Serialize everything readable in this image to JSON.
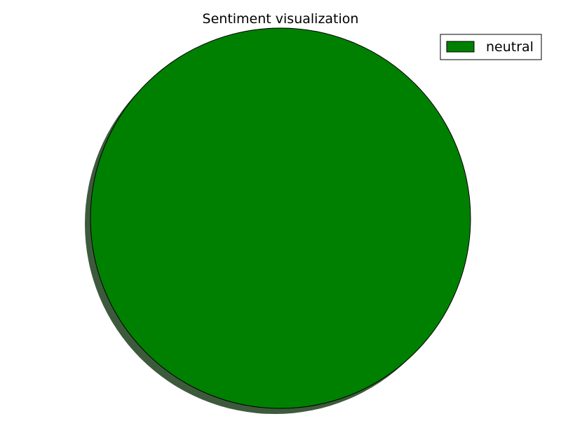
{
  "chart_data": {
    "type": "pie",
    "title": "Sentiment visualization",
    "slices": [
      {
        "label": "neutral",
        "value": 100,
        "color": "#008000"
      }
    ],
    "shadow": true,
    "shadow_color": "#3d5a3d",
    "legend": {
      "placement": "top-right",
      "entries": [
        "neutral"
      ]
    }
  }
}
